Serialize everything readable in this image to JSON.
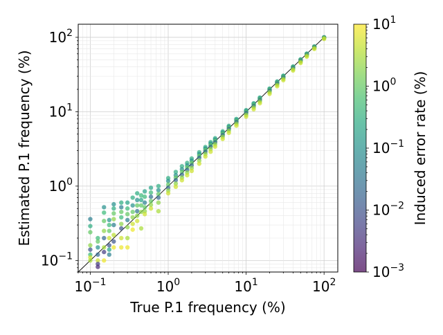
{
  "chart_data": {
    "type": "scatter",
    "title": "",
    "xlabel": "True P.1 frequency (%)",
    "ylabel": "Estimated P.1 frequency (%)",
    "x_scale": "log",
    "y_scale": "log",
    "xlim": [
      0.07,
      150
    ],
    "ylim": [
      0.07,
      150
    ],
    "grid": true,
    "reference_line": "y = x",
    "x_ticks": [
      {
        "value": 0.1,
        "base": "10",
        "exp": "−1"
      },
      {
        "value": 1,
        "base": "10",
        "exp": "0"
      },
      {
        "value": 10,
        "base": "10",
        "exp": "1"
      },
      {
        "value": 100,
        "base": "10",
        "exp": "2"
      }
    ],
    "y_ticks": [
      {
        "value": 0.1,
        "base": "10",
        "exp": "−1"
      },
      {
        "value": 1,
        "base": "10",
        "exp": "0"
      },
      {
        "value": 10,
        "base": "10",
        "exp": "1"
      },
      {
        "value": 100,
        "base": "10",
        "exp": "2"
      }
    ],
    "colorbar": {
      "label": "Induced error rate (%)",
      "scale": "log",
      "colormap": "viridis",
      "range": [
        0.001,
        10
      ],
      "ticks": [
        {
          "value": 0.001,
          "base": "10",
          "exp": "−3"
        },
        {
          "value": 0.01,
          "base": "10",
          "exp": "−2"
        },
        {
          "value": 0.1,
          "base": "10",
          "exp": "−1"
        },
        {
          "value": 1,
          "base": "10",
          "exp": "0"
        },
        {
          "value": 10,
          "base": "10",
          "exp": "1"
        }
      ]
    },
    "marker_alpha": 0.7,
    "series": [
      {
        "x": [
          0.1,
          0.1,
          0.1,
          0.1,
          0.1,
          0.1,
          0.1,
          0.1
        ],
        "y": [
          0.36,
          0.29,
          0.24,
          0.16,
          0.14,
          0.12,
          0.11,
          0.1
        ],
        "c": [
          0.05,
          0.3,
          1.0,
          2.0,
          0.01,
          0.5,
          5.0,
          3.0
        ]
      },
      {
        "x": [
          0.125,
          0.125,
          0.125,
          0.125,
          0.125,
          0.125,
          0.125
        ],
        "y": [
          0.2,
          0.18,
          0.15,
          0.12,
          0.1,
          0.09,
          0.082
        ],
        "c": [
          0.5,
          1.0,
          0.1,
          0.02,
          5.0,
          0.005,
          0.003
        ]
      },
      {
        "x": [
          0.15,
          0.15,
          0.15,
          0.15,
          0.15,
          0.15,
          0.15,
          0.15
        ],
        "y": [
          0.52,
          0.44,
          0.34,
          0.25,
          0.2,
          0.15,
          0.13,
          0.1
        ],
        "c": [
          0.1,
          0.5,
          1.0,
          2.0,
          0.02,
          3.0,
          0.005,
          8.0
        ]
      },
      {
        "x": [
          0.175,
          0.175,
          0.175,
          0.175,
          0.175,
          0.175,
          0.175
        ],
        "y": [
          0.35,
          0.3,
          0.25,
          0.2,
          0.16,
          0.14,
          0.12
        ],
        "c": [
          0.1,
          0.5,
          1.0,
          5.0,
          0.01,
          0.2,
          0.05
        ]
      },
      {
        "x": [
          0.2,
          0.2,
          0.2,
          0.2,
          0.2,
          0.2,
          0.2,
          0.2
        ],
        "y": [
          0.57,
          0.5,
          0.43,
          0.36,
          0.3,
          0.22,
          0.18,
          0.15
        ],
        "c": [
          0.1,
          0.3,
          1.0,
          2.0,
          0.05,
          4.0,
          0.01,
          8.0
        ]
      },
      {
        "x": [
          0.25,
          0.25,
          0.25,
          0.25,
          0.25,
          0.25,
          0.25,
          0.25
        ],
        "y": [
          0.6,
          0.52,
          0.45,
          0.38,
          0.31,
          0.27,
          0.2,
          0.15
        ],
        "c": [
          0.3,
          0.05,
          1.0,
          0.5,
          2.0,
          0.01,
          5.0,
          8.0
        ]
      },
      {
        "x": [
          0.3,
          0.3,
          0.3,
          0.3,
          0.3,
          0.3,
          0.3
        ],
        "y": [
          0.6,
          0.5,
          0.42,
          0.35,
          0.28,
          0.2,
          0.15
        ],
        "c": [
          0.2,
          0.5,
          1.0,
          0.05,
          2.0,
          3.0,
          8.0
        ]
      },
      {
        "x": [
          0.35,
          0.35,
          0.35,
          0.35,
          0.35,
          0.35
        ],
        "y": [
          0.7,
          0.55,
          0.45,
          0.38,
          0.31,
          0.26
        ],
        "c": [
          0.3,
          0.1,
          1.0,
          2.0,
          5.0,
          8.0
        ]
      },
      {
        "x": [
          0.4,
          0.4,
          0.4,
          0.4,
          0.4,
          0.4
        ],
        "y": [
          0.8,
          0.65,
          0.55,
          0.46,
          0.4,
          0.34
        ],
        "c": [
          0.3,
          0.1,
          1.0,
          0.03,
          2.0,
          5.0
        ]
      },
      {
        "x": [
          0.45,
          0.45,
          0.45,
          0.45,
          0.45
        ],
        "y": [
          0.75,
          0.65,
          0.55,
          0.45,
          0.27
        ],
        "c": [
          0.5,
          0.2,
          1.0,
          2.0,
          3.0
        ]
      },
      {
        "x": [
          0.5,
          0.5,
          0.5,
          0.5,
          0.5,
          0.5
        ],
        "y": [
          0.85,
          0.72,
          0.6,
          0.52,
          0.46,
          0.42
        ],
        "c": [
          0.2,
          0.5,
          0.05,
          1.0,
          2.0,
          5.0
        ]
      },
      {
        "x": [
          0.6,
          0.6,
          0.6,
          0.6,
          0.6,
          0.6
        ],
        "y": [
          0.95,
          0.82,
          0.72,
          0.63,
          0.56,
          0.5
        ],
        "c": [
          0.2,
          0.5,
          0.03,
          1.0,
          2.0,
          5.0
        ]
      },
      {
        "x": [
          0.75,
          0.75,
          0.75,
          0.75,
          0.75,
          0.75
        ],
        "y": [
          1.0,
          0.88,
          0.78,
          0.7,
          0.6,
          0.46
        ],
        "c": [
          0.3,
          0.1,
          1.0,
          0.02,
          2.0,
          3.0
        ]
      },
      {
        "x": [
          1.0,
          1.0,
          1.0,
          1.0,
          1.0,
          1.0
        ],
        "y": [
          1.28,
          1.17,
          1.05,
          0.95,
          0.87,
          0.8
        ],
        "c": [
          0.3,
          0.1,
          1.0,
          0.02,
          2.0,
          5.0
        ]
      },
      {
        "x": [
          1.25,
          1.25,
          1.25,
          1.25,
          1.25,
          1.25
        ],
        "y": [
          1.55,
          1.4,
          1.3,
          1.2,
          1.08,
          0.98
        ],
        "c": [
          0.3,
          0.1,
          1.0,
          0.02,
          2.0,
          5.0
        ]
      },
      {
        "x": [
          1.5,
          1.5,
          1.5,
          1.5,
          1.5,
          1.5
        ],
        "y": [
          1.85,
          1.68,
          1.55,
          1.42,
          1.3,
          1.2
        ],
        "c": [
          0.3,
          0.1,
          1.0,
          0.02,
          2.0,
          5.0
        ]
      },
      {
        "x": [
          1.75,
          1.75,
          1.75,
          1.75,
          1.75,
          1.75
        ],
        "y": [
          2.05,
          1.9,
          1.78,
          1.65,
          1.52,
          1.4
        ],
        "c": [
          0.3,
          0.1,
          1.0,
          0.02,
          2.0,
          5.0
        ]
      },
      {
        "x": [
          2.0,
          2.0,
          2.0,
          2.0,
          2.0,
          2.0
        ],
        "y": [
          2.35,
          2.2,
          2.05,
          1.9,
          1.75,
          1.6
        ],
        "c": [
          0.3,
          0.1,
          1.0,
          0.02,
          2.0,
          5.0
        ]
      },
      {
        "x": [
          2.5,
          2.5,
          2.5,
          2.5,
          2.5,
          2.5
        ],
        "y": [
          2.85,
          2.7,
          2.55,
          2.4,
          2.2,
          2.0
        ],
        "c": [
          0.3,
          0.1,
          1.0,
          0.02,
          2.0,
          5.0
        ]
      },
      {
        "x": [
          3.0,
          3.0,
          3.0,
          3.0,
          3.0,
          3.0
        ],
        "y": [
          3.35,
          3.2,
          3.05,
          2.9,
          2.7,
          2.5
        ],
        "c": [
          0.3,
          0.1,
          1.0,
          0.02,
          2.0,
          5.0
        ]
      },
      {
        "x": [
          3.5,
          3.5,
          3.5,
          3.5,
          3.5,
          3.5
        ],
        "y": [
          3.9,
          3.72,
          3.55,
          3.38,
          3.15,
          2.9
        ],
        "c": [
          0.3,
          0.1,
          1.0,
          0.02,
          2.0,
          5.0
        ]
      },
      {
        "x": [
          4.0,
          4.0,
          4.0,
          4.0,
          4.0,
          4.0
        ],
        "y": [
          4.4,
          4.22,
          4.05,
          3.88,
          3.65,
          3.4
        ],
        "c": [
          0.3,
          0.1,
          1.0,
          0.02,
          2.0,
          5.0
        ]
      },
      {
        "x": [
          5.0,
          5.0,
          5.0,
          5.0,
          5.0,
          5.0
        ],
        "y": [
          5.45,
          5.25,
          5.05,
          4.85,
          4.6,
          4.3
        ],
        "c": [
          0.3,
          0.1,
          1.0,
          0.02,
          2.0,
          5.0
        ]
      },
      {
        "x": [
          6.0,
          6.0,
          6.0,
          6.0,
          6.0,
          6.0
        ],
        "y": [
          6.45,
          6.25,
          6.05,
          5.85,
          5.55,
          5.2
        ],
        "c": [
          0.3,
          0.1,
          1.0,
          0.02,
          2.0,
          5.0
        ]
      },
      {
        "x": [
          7.5,
          7.5,
          7.5,
          7.5,
          7.5,
          7.5
        ],
        "y": [
          8.0,
          7.75,
          7.5,
          7.25,
          6.9,
          6.5
        ],
        "c": [
          0.3,
          0.1,
          1.0,
          0.02,
          2.0,
          5.0
        ]
      },
      {
        "x": [
          10,
          10,
          10,
          10,
          10,
          10
        ],
        "y": [
          10.5,
          10.2,
          9.9,
          9.6,
          9.1,
          8.6
        ],
        "c": [
          0.3,
          0.1,
          1.0,
          0.02,
          2.0,
          5.0
        ]
      },
      {
        "x": [
          12.5,
          12.5,
          12.5,
          12.5,
          12.5,
          12.5
        ],
        "y": [
          13.0,
          12.6,
          12.3,
          11.9,
          11.4,
          10.8
        ],
        "c": [
          0.3,
          0.1,
          1.0,
          0.02,
          2.0,
          5.0
        ]
      },
      {
        "x": [
          15,
          15,
          15,
          15,
          15,
          15
        ],
        "y": [
          15.5,
          15.1,
          14.7,
          14.3,
          13.7,
          13.0
        ],
        "c": [
          0.3,
          0.1,
          1.0,
          0.02,
          2.0,
          5.0
        ]
      },
      {
        "x": [
          20,
          20,
          20,
          20,
          20,
          20
        ],
        "y": [
          20.5,
          20.0,
          19.6,
          19.1,
          18.3,
          17.4
        ],
        "c": [
          0.3,
          0.1,
          1.0,
          0.02,
          2.0,
          5.0
        ]
      },
      {
        "x": [
          25,
          25,
          25,
          25,
          25,
          25
        ],
        "y": [
          25.5,
          25.0,
          24.5,
          23.9,
          23.0,
          22.0
        ],
        "c": [
          0.3,
          0.1,
          1.0,
          0.02,
          2.0,
          5.0
        ]
      },
      {
        "x": [
          30,
          30,
          30,
          30,
          30,
          30
        ],
        "y": [
          30.5,
          30.0,
          29.4,
          28.7,
          27.7,
          26.5
        ],
        "c": [
          0.3,
          0.1,
          1.0,
          0.02,
          2.0,
          5.0
        ]
      },
      {
        "x": [
          40,
          40,
          40,
          40,
          40,
          40
        ],
        "y": [
          40.5,
          40.0,
          39.3,
          38.5,
          37.2,
          35.8
        ],
        "c": [
          0.3,
          0.1,
          1.0,
          0.02,
          2.0,
          5.0
        ]
      },
      {
        "x": [
          50,
          50,
          50,
          50,
          50,
          50
        ],
        "y": [
          50.5,
          50.0,
          49.2,
          48.3,
          46.9,
          45.2
        ],
        "c": [
          0.3,
          0.1,
          1.0,
          0.02,
          2.0,
          5.0
        ]
      },
      {
        "x": [
          60,
          60,
          60,
          60,
          60,
          60
        ],
        "y": [
          60.4,
          60.0,
          59.2,
          58.2,
          56.8,
          54.9
        ],
        "c": [
          0.3,
          0.1,
          1.0,
          0.02,
          2.0,
          5.0
        ]
      },
      {
        "x": [
          75,
          75,
          75,
          75,
          75,
          75
        ],
        "y": [
          75.3,
          75.0,
          74.3,
          73.3,
          71.8,
          69.8
        ],
        "c": [
          0.3,
          0.1,
          1.0,
          0.02,
          2.0,
          5.0
        ]
      },
      {
        "x": [
          100,
          100,
          100,
          100,
          100,
          100
        ],
        "y": [
          100,
          100,
          99.6,
          98.8,
          97.4,
          95.2
        ],
        "c": [
          0.3,
          0.1,
          1.0,
          0.02,
          2.0,
          5.0
        ]
      }
    ]
  }
}
